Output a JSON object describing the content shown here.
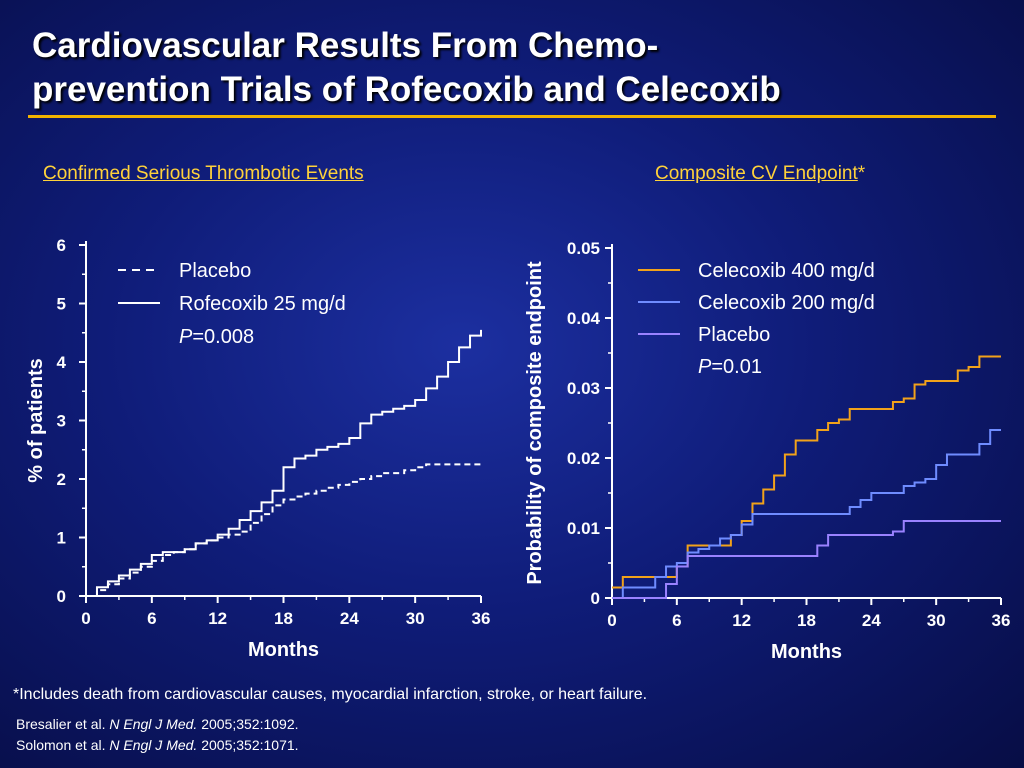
{
  "title": "Cardiovascular Results From Chemo-prevention Trials of Rofecoxib and Celecoxib",
  "title_line1": "Cardiovascular Results From Chemo-",
  "title_line2": "prevention Trials of Rofecoxib and Celecoxib",
  "colors": {
    "background": "#0f1c78",
    "rule": "#f2b300",
    "subtitle": "#ffd23a"
  },
  "chart_data": [
    {
      "type": "line",
      "title": "Confirmed Serious Thrombotic Events",
      "xlabel": "Months",
      "ylabel": "% of patients",
      "xlim": [
        0,
        36
      ],
      "ylim": [
        0,
        6
      ],
      "x_ticks": [
        "0",
        "6",
        "12",
        "18",
        "24",
        "30",
        "36"
      ],
      "y_ticks": [
        "0",
        "1",
        "2",
        "3",
        "4",
        "5",
        "6"
      ],
      "legend_position": "top-left",
      "annotation": "P=0.008",
      "series": [
        {
          "name": "Placebo",
          "style": "dashed",
          "color": "#ffffff",
          "x": [
            0,
            1,
            2,
            3,
            4,
            5,
            6,
            7,
            8,
            9,
            10,
            11,
            12,
            13,
            14,
            15,
            16,
            17,
            18,
            19,
            20,
            21,
            22,
            23,
            24,
            25,
            26,
            27,
            28,
            29,
            30,
            31,
            32,
            33,
            34,
            35,
            36
          ],
          "y": [
            0,
            0.1,
            0.2,
            0.3,
            0.4,
            0.5,
            0.6,
            0.7,
            0.75,
            0.8,
            0.9,
            0.95,
            1.0,
            1.05,
            1.1,
            1.25,
            1.4,
            1.55,
            1.65,
            1.7,
            1.75,
            1.8,
            1.85,
            1.9,
            1.95,
            2.0,
            2.05,
            2.1,
            2.1,
            2.15,
            2.2,
            2.25,
            2.25,
            2.25,
            2.25,
            2.25,
            2.25
          ]
        },
        {
          "name": "Rofecoxib 25 mg/d",
          "style": "solid",
          "color": "#ffffff",
          "x": [
            0,
            1,
            2,
            3,
            4,
            5,
            6,
            7,
            8,
            9,
            10,
            11,
            12,
            13,
            14,
            15,
            16,
            17,
            18,
            19,
            20,
            21,
            22,
            23,
            24,
            25,
            26,
            27,
            28,
            29,
            30,
            31,
            32,
            33,
            34,
            35,
            36
          ],
          "y": [
            0,
            0.15,
            0.25,
            0.35,
            0.45,
            0.55,
            0.7,
            0.75,
            0.75,
            0.8,
            0.9,
            0.95,
            1.05,
            1.15,
            1.3,
            1.45,
            1.6,
            1.8,
            2.2,
            2.35,
            2.4,
            2.5,
            2.55,
            2.6,
            2.7,
            2.95,
            3.1,
            3.15,
            3.2,
            3.25,
            3.35,
            3.55,
            3.75,
            4.0,
            4.25,
            4.45,
            4.55
          ]
        }
      ]
    },
    {
      "type": "line",
      "title": "Composite CV Endpoint",
      "title_suffix": "*",
      "xlabel": "Months",
      "ylabel": "Probability of composite endpoint",
      "xlim": [
        0,
        36
      ],
      "ylim": [
        0,
        0.05
      ],
      "x_ticks": [
        "0",
        "6",
        "12",
        "18",
        "24",
        "30",
        "36"
      ],
      "y_ticks": [
        "0",
        "0.01",
        "0.02",
        "0.03",
        "0.04",
        "0.05"
      ],
      "legend_position": "top-left",
      "annotation": "P=0.01",
      "series": [
        {
          "name": "Celecoxib 400 mg/d",
          "color": "#f2a21a",
          "x": [
            0,
            1,
            2,
            3,
            4,
            5,
            6,
            7,
            8,
            9,
            10,
            11,
            12,
            13,
            14,
            15,
            16,
            17,
            18,
            19,
            20,
            21,
            22,
            23,
            24,
            25,
            26,
            27,
            28,
            29,
            30,
            31,
            32,
            33,
            34,
            35,
            36
          ],
          "y": [
            0.0015,
            0.003,
            0.003,
            0.003,
            0.003,
            0.003,
            0.0045,
            0.0075,
            0.0075,
            0.0075,
            0.0075,
            0.009,
            0.011,
            0.0135,
            0.0155,
            0.0175,
            0.0205,
            0.0225,
            0.0225,
            0.024,
            0.025,
            0.0255,
            0.027,
            0.027,
            0.027,
            0.027,
            0.028,
            0.0285,
            0.0305,
            0.031,
            0.031,
            0.031,
            0.0325,
            0.033,
            0.0345,
            0.0345,
            0.0345
          ]
        },
        {
          "name": "Celecoxib 200 mg/d",
          "color": "#6f8cff",
          "x": [
            0,
            1,
            2,
            3,
            4,
            5,
            6,
            7,
            8,
            9,
            10,
            11,
            12,
            13,
            14,
            15,
            16,
            17,
            18,
            19,
            20,
            21,
            22,
            23,
            24,
            25,
            26,
            27,
            28,
            29,
            30,
            31,
            32,
            33,
            34,
            35,
            36
          ],
          "y": [
            0,
            0.0015,
            0.0015,
            0.0015,
            0.003,
            0.0045,
            0.005,
            0.0065,
            0.007,
            0.0075,
            0.0085,
            0.009,
            0.0105,
            0.012,
            0.012,
            0.012,
            0.012,
            0.012,
            0.012,
            0.012,
            0.012,
            0.012,
            0.013,
            0.014,
            0.015,
            0.015,
            0.015,
            0.016,
            0.0165,
            0.017,
            0.019,
            0.0205,
            0.0205,
            0.0205,
            0.022,
            0.024,
            0.024
          ]
        },
        {
          "name": "Placebo",
          "color": "#9a82ff",
          "x": [
            0,
            1,
            2,
            3,
            4,
            5,
            6,
            7,
            8,
            9,
            10,
            11,
            12,
            13,
            14,
            15,
            16,
            17,
            18,
            19,
            20,
            21,
            22,
            23,
            24,
            25,
            26,
            27,
            28,
            29,
            30,
            31,
            32,
            33,
            34,
            35,
            36
          ],
          "y": [
            0,
            0,
            0,
            0,
            0,
            0.002,
            0.0045,
            0.006,
            0.006,
            0.006,
            0.006,
            0.006,
            0.006,
            0.006,
            0.006,
            0.006,
            0.006,
            0.006,
            0.006,
            0.0075,
            0.009,
            0.009,
            0.009,
            0.009,
            0.009,
            0.009,
            0.0095,
            0.011,
            0.011,
            0.011,
            0.011,
            0.011,
            0.011,
            0.011,
            0.011,
            0.011,
            0.011
          ]
        }
      ]
    }
  ],
  "footnote": "*Includes death from cardiovascular causes, myocardial infarction, stroke, or heart failure.",
  "references": [
    {
      "authors": "Bresalier et al.",
      "journal": "N Engl J Med.",
      "citation": "2005;352:1092."
    },
    {
      "authors": "Solomon et al.",
      "journal": "N Engl J Med.",
      "citation": "2005;352:1071."
    }
  ]
}
